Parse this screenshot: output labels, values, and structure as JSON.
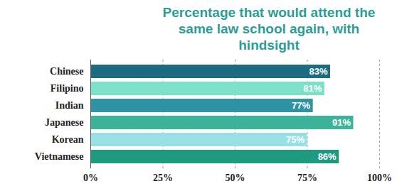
{
  "chart_data": {
    "type": "bar",
    "orientation": "horizontal",
    "title": "Percentage that would attend the same law school again, with hindsight",
    "categories": [
      "Chinese",
      "Filipino",
      "Indian",
      "Japanese",
      "Korean",
      "Vietnamese"
    ],
    "values": [
      83,
      81,
      77,
      91,
      75,
      86
    ],
    "value_labels": [
      "83%",
      "81%",
      "77%",
      "91%",
      "75%",
      "86%"
    ],
    "colors": [
      "#1b6c80",
      "#7de0c9",
      "#2f93a4",
      "#3db39a",
      "#98e0e3",
      "#1e9a80"
    ],
    "xlim": [
      0,
      100
    ],
    "xticks": [
      {
        "value": 0,
        "label": "0%"
      },
      {
        "value": 25,
        "label": "25%"
      },
      {
        "value": 50,
        "label": "50%"
      },
      {
        "value": 75,
        "label": "75%"
      },
      {
        "value": 100,
        "label": "100%"
      }
    ],
    "grid": true,
    "data_labels": true
  }
}
